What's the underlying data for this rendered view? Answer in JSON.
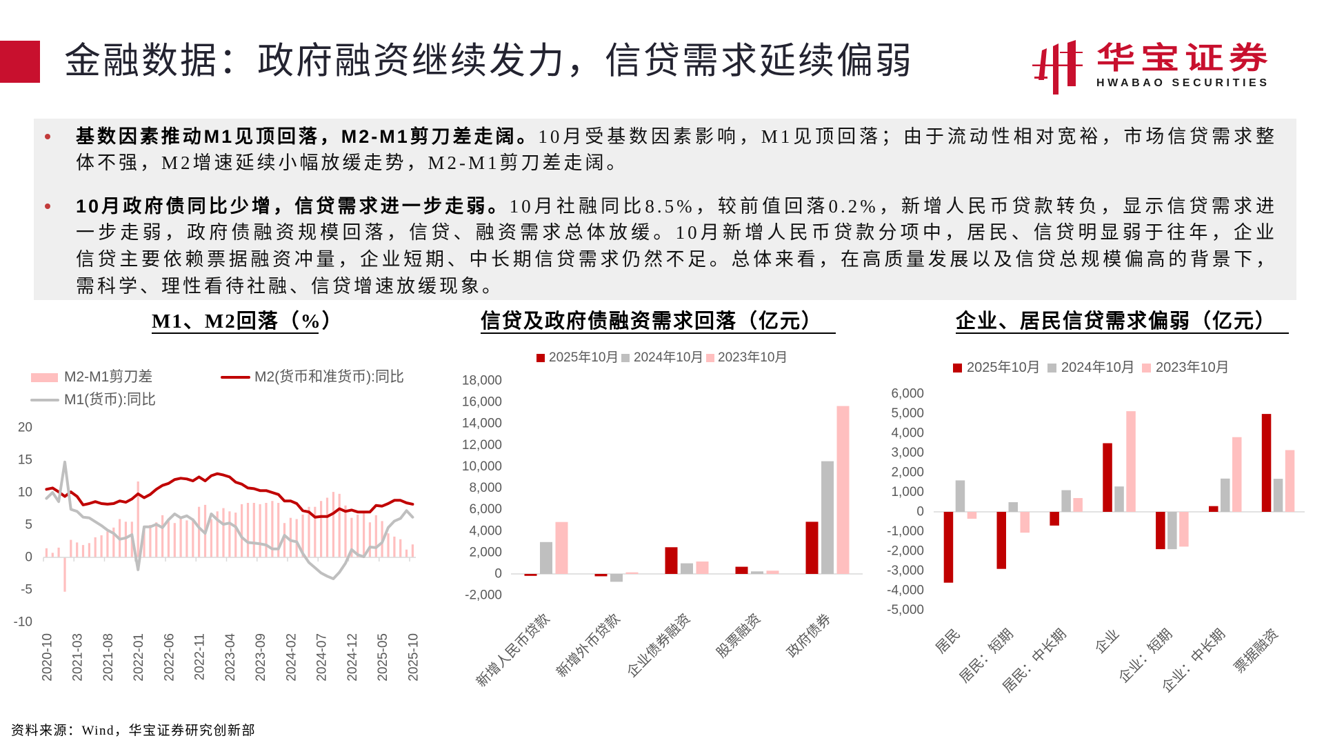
{
  "header": {
    "title": "金融数据：政府融资继续发力，信贷需求延续偏弱",
    "logo_cn": "华宝证券",
    "logo_en": "HWABAO SECURITIES"
  },
  "summary": {
    "bullets": [
      {
        "heading": "基数因素推动M1见顶回落，M2-M1剪刀差走阔。",
        "lines": [
          "10月受基数因素影响，M1见顶回落；由于流动性相对宽裕，市场信贷需求整",
          "体不强，M2增速延续小幅放缓走势，M2-M1剪刀差走阔。"
        ]
      },
      {
        "heading": "10月政府债同比少增，信贷需求进一步走弱。",
        "lines": [
          "10月社融同比8.5%，较前值回落0.2%，新增人民币贷款转负，显示信贷需求进",
          "一步走弱，政府债融资规模回落，信贷、融资需求总体放缓。10月新增人民币贷款分项中，居民、信贷明显弱于往年，企业",
          "信贷主要依赖票据融资冲量，企业短期、中长期信贷需求仍然不足。总体来看，在高质量发展以及信贷总规模偏高的背景下，",
          "需科学、理性看待社融、信贷增速放缓现象。"
        ]
      }
    ]
  },
  "footer": {
    "source": "资料来源：Wind，华宝证券研究创新部"
  },
  "colors": {
    "brand_red": "#C8102E",
    "m2": "#C00000",
    "m1": "#BFBFBF",
    "spread": "#FFBFBF",
    "s2025": "#C00000",
    "s2024": "#BFBFBF",
    "s2023": "#FFBFBF",
    "axis": "#D9D9D9",
    "tick_text": "#595959",
    "summary_bg": "#EFEFEF"
  },
  "chart_data": [
    {
      "type": "line",
      "title": "M1、M2回落（%）",
      "xlabel": "",
      "ylabel": "",
      "ylim": [
        -10,
        20
      ],
      "yticks": [
        20,
        15,
        10,
        5,
        0,
        -5,
        -10
      ],
      "ytick_labels": [
        "20",
        "15",
        "10",
        "5",
        "0",
        "-5",
        "-10"
      ],
      "grid": false,
      "legend_position": "top-left",
      "x": [
        "2020-10",
        "2020-11",
        "2020-12",
        "2021-01",
        "2021-02",
        "2021-03",
        "2021-04",
        "2021-05",
        "2021-06",
        "2021-07",
        "2021-08",
        "2021-09",
        "2021-10",
        "2021-11",
        "2021-12",
        "2022-01",
        "2022-02",
        "2022-03",
        "2022-04",
        "2022-05",
        "2022-06",
        "2022-07",
        "2022-08",
        "2022-09",
        "2022-10",
        "2022-11",
        "2022-12",
        "2023-01",
        "2023-02",
        "2023-03",
        "2023-04",
        "2023-05",
        "2023-06",
        "2023-07",
        "2023-08",
        "2023-09",
        "2023-10",
        "2023-11",
        "2023-12",
        "2024-01",
        "2024-02",
        "2024-03",
        "2024-04",
        "2024-05",
        "2024-06",
        "2024-07",
        "2024-08",
        "2024-09",
        "2024-10",
        "2024-11",
        "2024-12",
        "2025-01",
        "2025-02",
        "2025-03",
        "2025-04",
        "2025-05",
        "2025-06",
        "2025-07",
        "2025-08",
        "2025-09",
        "2025-10"
      ],
      "x_tick_labels": [
        "2020-10",
        "2021-03",
        "2021-08",
        "2022-01",
        "2022-06",
        "2022-11",
        "2023-04",
        "2023-09",
        "2024-02",
        "2024-07",
        "2024-12",
        "2025-05",
        "2025-10"
      ],
      "series": [
        {
          "name": "M2-M1剪刀差",
          "type": "bar",
          "values": [
            1.4,
            0.7,
            1.5,
            -5.3,
            2.7,
            2.3,
            1.9,
            2.2,
            3.1,
            3.4,
            4.0,
            4.6,
            5.9,
            5.5,
            5.5,
            11.7,
            4.5,
            5.0,
            5.4,
            6.5,
            5.6,
            5.3,
            6.1,
            5.7,
            6.0,
            7.8,
            8.1,
            5.9,
            7.1,
            7.6,
            7.1,
            6.9,
            8.2,
            8.4,
            8.4,
            8.2,
            8.4,
            8.7,
            8.4,
            5.3,
            6.1,
            5.9,
            6.6,
            7.8,
            7.8,
            8.7,
            9.2,
            10.1,
            9.8,
            8.0,
            6.1,
            6.6,
            6.9,
            5.4,
            6.5,
            5.6,
            3.7,
            3.2,
            2.8,
            1.2,
            2.0
          ]
        },
        {
          "name": "M2(货币和准货币):同比",
          "type": "line",
          "values": [
            10.5,
            10.7,
            10.1,
            9.4,
            10.1,
            9.4,
            8.1,
            8.3,
            8.6,
            8.3,
            8.2,
            8.3,
            8.7,
            8.5,
            9.0,
            9.8,
            9.2,
            9.7,
            10.5,
            11.1,
            11.4,
            12.0,
            12.2,
            12.1,
            11.8,
            12.4,
            11.8,
            12.6,
            12.9,
            12.7,
            12.4,
            11.6,
            11.3,
            10.7,
            10.6,
            10.3,
            10.3,
            10.0,
            9.7,
            8.7,
            8.7,
            8.3,
            7.2,
            7.0,
            6.2,
            6.3,
            6.3,
            6.8,
            7.5,
            7.1,
            7.3,
            7.0,
            7.0,
            7.0,
            8.0,
            7.9,
            8.3,
            8.8,
            8.8,
            8.4,
            8.2
          ]
        },
        {
          "name": "M1(货币):同比",
          "type": "line",
          "values": [
            9.1,
            10.0,
            8.6,
            14.7,
            7.4,
            7.1,
            6.2,
            6.1,
            5.5,
            4.9,
            4.2,
            3.7,
            2.8,
            3.0,
            3.5,
            -1.9,
            4.7,
            4.7,
            5.1,
            4.6,
            5.8,
            6.7,
            6.1,
            6.4,
            5.8,
            4.6,
            3.7,
            6.7,
            5.8,
            5.1,
            5.3,
            4.7,
            3.1,
            2.3,
            2.2,
            2.1,
            1.9,
            1.3,
            1.3,
            3.4,
            2.6,
            2.4,
            0.6,
            -0.8,
            -1.6,
            -2.4,
            -2.9,
            -3.3,
            -2.3,
            -0.9,
            1.2,
            0.4,
            0.1,
            1.6,
            1.5,
            2.3,
            4.6,
            5.6,
            6.0,
            7.2,
            6.2
          ]
        }
      ]
    },
    {
      "type": "bar",
      "title": "信贷及政府债融资需求回落（亿元）",
      "xlabel": "",
      "ylabel": "亿元",
      "ylim": [
        -2000,
        18000
      ],
      "yticks": [
        18000,
        16000,
        14000,
        12000,
        10000,
        8000,
        6000,
        4000,
        2000,
        0,
        -2000
      ],
      "ytick_labels": [
        "18,000",
        "16,000",
        "14,000",
        "12,000",
        "10,000",
        "8,000",
        "6,000",
        "4,000",
        "2,000",
        "0",
        "-2,000"
      ],
      "grid": false,
      "legend_position": "top",
      "categories": [
        "新增人民币贷款",
        "新增外币贷款",
        "企业债券融资",
        "股票融资",
        "政府债券"
      ],
      "series": [
        {
          "name": "2025年10月",
          "values": [
            -180,
            -220,
            2490,
            670,
            4860
          ]
        },
        {
          "name": "2024年10月",
          "values": [
            2970,
            -730,
            990,
            240,
            10500
          ]
        },
        {
          "name": "2023年10月",
          "values": [
            4840,
            150,
            1160,
            300,
            15640
          ]
        }
      ]
    },
    {
      "type": "bar",
      "title": "企业、居民信贷需求偏弱（亿元）",
      "xlabel": "",
      "ylabel": "亿元",
      "ylim": [
        -5000,
        6000
      ],
      "yticks": [
        6000,
        5000,
        4000,
        3000,
        2000,
        1000,
        0,
        -1000,
        -2000,
        -3000,
        -4000,
        -5000
      ],
      "ytick_labels": [
        "6,000",
        "5,000",
        "4,000",
        "3,000",
        "2,000",
        "1,000",
        "0",
        "-1,000",
        "-2,000",
        "-3,000",
        "-4,000",
        "-5,000"
      ],
      "grid": false,
      "legend_position": "top",
      "categories": [
        "居民",
        "居民：短期",
        "居民：中长期",
        "企业",
        "企业：短期",
        "企业：中长期",
        "票据融资"
      ],
      "series": [
        {
          "name": "2025年10月",
          "values": [
            -3604,
            -2900,
            -700,
            3490,
            -1900,
            290,
            4980
          ]
        },
        {
          "name": "2024年10月",
          "values": [
            1600,
            490,
            1100,
            1290,
            -1900,
            1690,
            1680
          ]
        },
        {
          "name": "2023年10月",
          "values": [
            -350,
            -1060,
            700,
            5120,
            -1770,
            3800,
            3140
          ]
        }
      ]
    }
  ]
}
